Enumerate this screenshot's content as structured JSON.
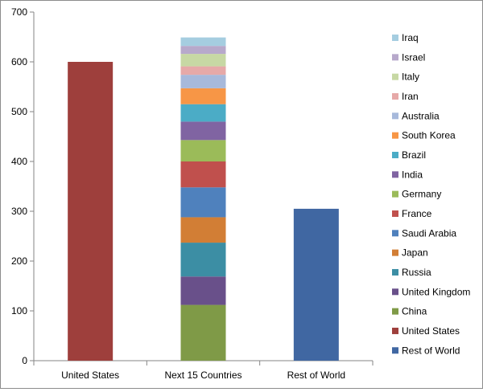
{
  "chart_data": {
    "type": "bar",
    "stacked": true,
    "categories": [
      "United States",
      "Next 15 Countries",
      "Rest of World"
    ],
    "ylim": [
      0,
      700
    ],
    "yticks": [
      0,
      100,
      200,
      300,
      400,
      500,
      600,
      700
    ],
    "grid": false,
    "legend_position": "right",
    "series": [
      {
        "name": "Rest of World",
        "color": "#4067A2",
        "values": [
          0,
          0,
          305
        ]
      },
      {
        "name": "United States",
        "color": "#9E3F3C",
        "values": [
          600,
          0,
          0
        ]
      },
      {
        "name": "China",
        "color": "#7F9A47",
        "values": [
          0,
          112,
          0
        ]
      },
      {
        "name": "United Kingdom",
        "color": "#69508A",
        "values": [
          0,
          57,
          0
        ]
      },
      {
        "name": "Russia",
        "color": "#3C8EA4",
        "values": [
          0,
          68,
          0
        ]
      },
      {
        "name": "Japan",
        "color": "#D27E35",
        "values": [
          0,
          51,
          0
        ]
      },
      {
        "name": "Saudi Arabia",
        "color": "#4F81BD",
        "values": [
          0,
          60,
          0
        ]
      },
      {
        "name": "France",
        "color": "#C0504D",
        "values": [
          0,
          52,
          0
        ]
      },
      {
        "name": "Germany",
        "color": "#9BBB59",
        "values": [
          0,
          43,
          0
        ]
      },
      {
        "name": "India",
        "color": "#8064A2",
        "values": [
          0,
          37,
          0
        ]
      },
      {
        "name": "Brazil",
        "color": "#4BACC6",
        "values": [
          0,
          35,
          0
        ]
      },
      {
        "name": "South Korea",
        "color": "#F79646",
        "values": [
          0,
          32,
          0
        ]
      },
      {
        "name": "Australia",
        "color": "#A7B9DB",
        "values": [
          0,
          27,
          0
        ]
      },
      {
        "name": "Iran",
        "color": "#E6A9A8",
        "values": [
          0,
          17,
          0
        ]
      },
      {
        "name": "Italy",
        "color": "#C7D8A4",
        "values": [
          0,
          25,
          0
        ]
      },
      {
        "name": "Israel",
        "color": "#B7A9CB",
        "values": [
          0,
          16,
          0
        ]
      },
      {
        "name": "Iraq",
        "color": "#A5CDE0",
        "values": [
          0,
          17,
          0
        ]
      }
    ]
  }
}
